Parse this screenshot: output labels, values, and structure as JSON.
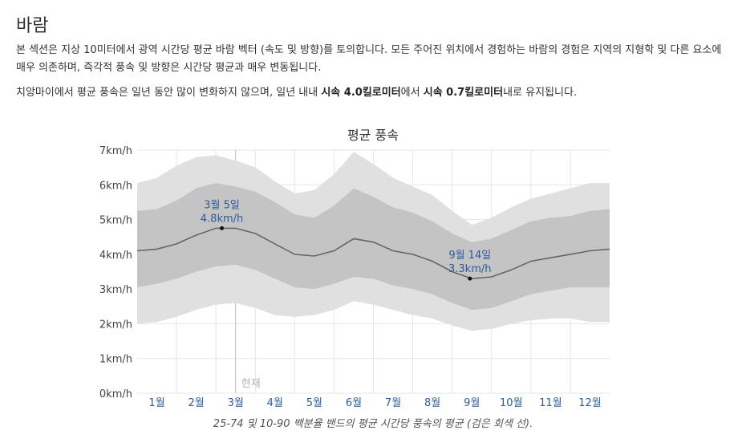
{
  "section": {
    "title": "바람",
    "paragraph1": "본 섹션은 지상 10미터에서 광역 시간당 평균 바람 벡터 (속도 및 방향)를 토의합니다. 모든 주어진 위치에서 경험하는 바람의 경험은 지역의 지형학 및 다른 요소에 매우 의존하며, 즉각적 풍속 및 방향은 시간당 평균과 매우 변동됩니다.",
    "p2_before": "치앙마이에서 평균 풍속은 일년 동안 많이 변화하지 않으며, 일년 내내 ",
    "p2_bold1": "시속 4.0킬로미터",
    "p2_mid": "에서 ",
    "p2_bold2": "시속 0.7킬로미터",
    "p2_after": "내로 유지됩니다."
  },
  "chart_data": {
    "type": "area",
    "title": "평균 풍속",
    "ylim": [
      0,
      7
    ],
    "yticks": [
      "0km/h",
      "1km/h",
      "2km/h",
      "3km/h",
      "4km/h",
      "5km/h",
      "6km/h",
      "7km/h"
    ],
    "xlim": [
      0,
      12
    ],
    "categories": [
      "1월",
      "2월",
      "3월",
      "4월",
      "5월",
      "6월",
      "7월",
      "8월",
      "9월",
      "10월",
      "11월",
      "12월"
    ],
    "current_label": "현재",
    "current_month_pos": 2.5,
    "x": [
      0,
      0.5,
      1,
      1.5,
      2,
      2.5,
      3,
      3.5,
      4,
      4.5,
      5,
      5.5,
      6,
      6.5,
      7,
      7.5,
      8,
      8.5,
      9,
      9.5,
      10,
      10.5,
      11,
      11.5,
      12
    ],
    "series": [
      {
        "name": "평균",
        "values": [
          4.1,
          4.15,
          4.3,
          4.55,
          4.75,
          4.75,
          4.6,
          4.3,
          4.0,
          3.95,
          4.1,
          4.45,
          4.35,
          4.1,
          4.0,
          3.8,
          3.5,
          3.3,
          3.35,
          3.55,
          3.8,
          3.9,
          4.0,
          4.1,
          4.15
        ]
      },
      {
        "name": "25번째 백분위",
        "values": [
          3.05,
          3.15,
          3.3,
          3.5,
          3.65,
          3.7,
          3.55,
          3.3,
          3.05,
          3.0,
          3.15,
          3.35,
          3.3,
          3.1,
          3.0,
          2.85,
          2.6,
          2.4,
          2.45,
          2.65,
          2.85,
          2.95,
          3.05,
          3.05,
          3.05
        ]
      },
      {
        "name": "75번째 백분위",
        "values": [
          5.25,
          5.3,
          5.55,
          5.9,
          6.05,
          5.95,
          5.8,
          5.5,
          5.15,
          5.05,
          5.4,
          5.9,
          5.65,
          5.35,
          5.2,
          4.95,
          4.6,
          4.35,
          4.45,
          4.7,
          4.95,
          5.05,
          5.1,
          5.25,
          5.3
        ]
      },
      {
        "name": "10번째 백분위",
        "values": [
          2.0,
          2.05,
          2.2,
          2.4,
          2.55,
          2.6,
          2.45,
          2.25,
          2.2,
          2.25,
          2.4,
          2.65,
          2.55,
          2.4,
          2.25,
          2.15,
          1.95,
          1.8,
          1.85,
          2.0,
          2.1,
          2.15,
          2.15,
          2.05,
          2.05
        ]
      },
      {
        "name": "90번째 백분위",
        "values": [
          6.05,
          6.2,
          6.55,
          6.8,
          6.85,
          6.7,
          6.5,
          6.1,
          5.75,
          5.85,
          6.3,
          6.95,
          6.6,
          6.2,
          5.95,
          5.7,
          5.25,
          4.85,
          5.05,
          5.35,
          5.6,
          5.75,
          5.9,
          6.05,
          6.05
        ]
      }
    ],
    "annotations": [
      {
        "date": "3월 5일",
        "value": 4.75,
        "label": "4.8km/h",
        "x": 2.15
      },
      {
        "date": "9월 14일",
        "value": 3.3,
        "label": "3.3km/h",
        "x": 8.45
      }
    ],
    "caption": "25-74 및 10-90 백분율 밴드의 평균 시간당 풍속의 평균 (검은 회색 선).",
    "colors": {
      "outer_band": "#e0e0e0",
      "inner_band": "#c4c4c4",
      "line": "#666666",
      "label": "#2b5a9e",
      "grid": "#e6e6e6",
      "axis_text": "#444444",
      "month_text": "#2b5a9e"
    }
  }
}
